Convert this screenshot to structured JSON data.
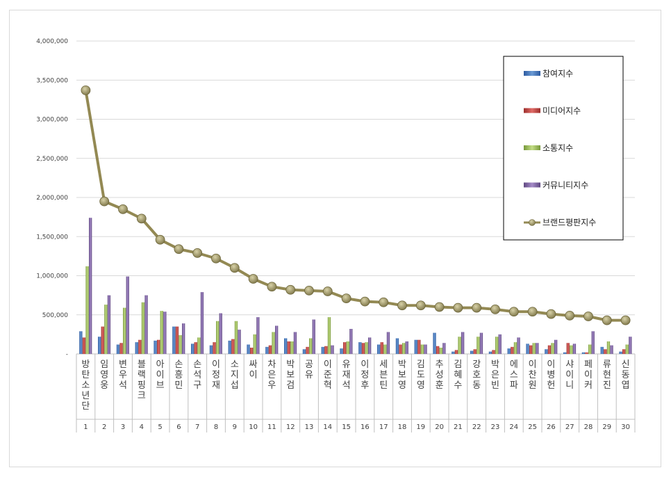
{
  "chart_data": {
    "type": "bar",
    "categories": [
      "방탄소년단",
      "임영웅",
      "변우석",
      "블랙핑크",
      "아이브",
      "손흥민",
      "손석구",
      "이정재",
      "소지섭",
      "싸이",
      "차은우",
      "박보검",
      "공유",
      "이준혁",
      "유재석",
      "이정후",
      "세븐틴",
      "박보영",
      "김도영",
      "추성훈",
      "김혜수",
      "강호동",
      "박은빈",
      "에스파",
      "이찬원",
      "이병헌",
      "샤이니",
      "페이커",
      "류현진",
      "신동엽"
    ],
    "ranks": [
      "1",
      "2",
      "3",
      "4",
      "5",
      "6",
      "7",
      "8",
      "9",
      "10",
      "11",
      "12",
      "13",
      "14",
      "15",
      "16",
      "17",
      "18",
      "19",
      "20",
      "21",
      "22",
      "23",
      "24",
      "25",
      "26",
      "27",
      "28",
      "29",
      "30"
    ],
    "series": [
      {
        "name": "참여지수",
        "type": "bar",
        "color": "#4f81bd",
        "values": [
          290000,
          220000,
          120000,
          150000,
          170000,
          350000,
          130000,
          110000,
          170000,
          120000,
          90000,
          200000,
          60000,
          90000,
          70000,
          150000,
          120000,
          200000,
          180000,
          270000,
          30000,
          40000,
          30000,
          70000,
          130000,
          60000,
          20000,
          20000,
          90000,
          30000
        ]
      },
      {
        "name": "미디어지수",
        "type": "bar",
        "color": "#c0504d",
        "values": [
          210000,
          350000,
          140000,
          180000,
          180000,
          350000,
          150000,
          150000,
          190000,
          80000,
          110000,
          160000,
          90000,
          100000,
          150000,
          140000,
          150000,
          120000,
          180000,
          100000,
          50000,
          60000,
          50000,
          90000,
          110000,
          110000,
          140000,
          20000,
          60000,
          60000
        ]
      },
      {
        "name": "소통지수",
        "type": "bar",
        "color": "#9bbb59",
        "values": [
          1120000,
          630000,
          590000,
          660000,
          550000,
          240000,
          210000,
          420000,
          420000,
          250000,
          280000,
          160000,
          200000,
          470000,
          160000,
          150000,
          120000,
          140000,
          120000,
          80000,
          220000,
          220000,
          220000,
          150000,
          140000,
          140000,
          110000,
          120000,
          160000,
          120000
        ]
      },
      {
        "name": "커뮤니티지수",
        "type": "bar",
        "color": "#8064a2",
        "values": [
          1740000,
          750000,
          990000,
          750000,
          540000,
          390000,
          790000,
          520000,
          310000,
          470000,
          360000,
          280000,
          440000,
          110000,
          320000,
          210000,
          280000,
          160000,
          120000,
          140000,
          280000,
          270000,
          250000,
          210000,
          140000,
          180000,
          130000,
          290000,
          110000,
          220000
        ]
      },
      {
        "name": "브랜드평판지수",
        "type": "line",
        "color": "#938953",
        "values": [
          3370000,
          1950000,
          1850000,
          1730000,
          1460000,
          1340000,
          1290000,
          1220000,
          1100000,
          960000,
          860000,
          820000,
          810000,
          800000,
          710000,
          670000,
          660000,
          620000,
          620000,
          600000,
          590000,
          590000,
          570000,
          540000,
          540000,
          510000,
          490000,
          480000,
          430000,
          430000
        ]
      }
    ],
    "ylim": [
      0,
      4000000
    ],
    "yticks": [
      "4,000,000",
      "3,500,000",
      "3,000,000",
      "2,500,000",
      "2,000,000",
      "1,500,000",
      "1,000,000",
      "500,000",
      "-"
    ],
    "grid": true,
    "legend_position": "top-right"
  }
}
